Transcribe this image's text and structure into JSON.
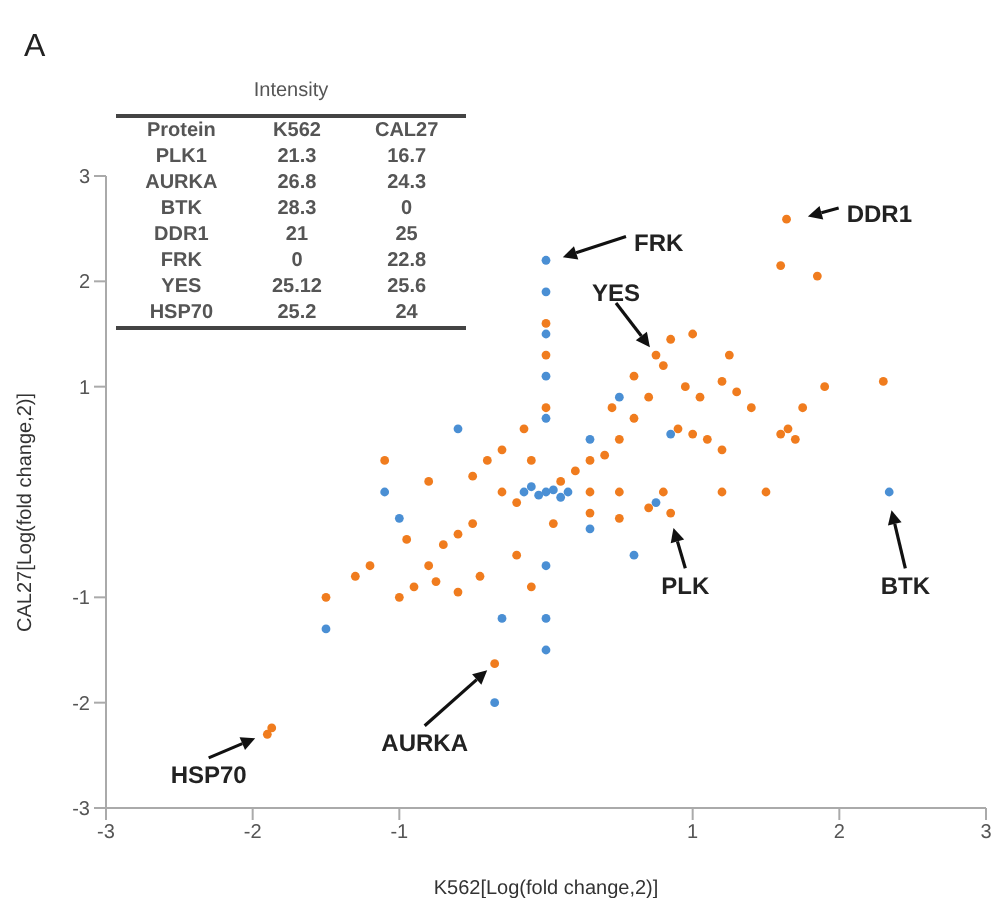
{
  "chart_data": [
    {
      "type": "scatter",
      "xlabel": "K562[Log(fold change,2)]",
      "ylabel": "CAL27[Log(fold change,2)]",
      "xlim": [
        -3,
        3
      ],
      "ylim": [
        -3,
        3
      ],
      "xticks": [
        -3,
        -2,
        -1,
        1,
        2,
        3
      ],
      "yticks": [
        -3,
        -2,
        -1,
        1,
        2,
        3
      ],
      "marker": "circle",
      "annotations": [
        "A",
        "FRK",
        "DDR1",
        {
          "text": "YES",
          "x": 0.75,
          "y": 1.3
        },
        "PLK",
        "BTK",
        {
          "text": "AURKA",
          "x": -0.35,
          "y": -1.63
        },
        "HSP70"
      ],
      "series": [
        {
          "color": "#f07c1e",
          "x": [
            -0.3,
            -0.2,
            0.1,
            0.2,
            0.3,
            0.4,
            0.5,
            0.6,
            0.7,
            0.75,
            0.8,
            0.9,
            1.0,
            1.1,
            1.2,
            0.95,
            1.05,
            1.2,
            1.3,
            1.25,
            1.4,
            1.6,
            1.7,
            1.75,
            1.65,
            1.9,
            2.3,
            1.6,
            1.85,
            1.64,
            -0.5,
            -0.6,
            -0.7,
            -0.8,
            -0.9,
            -1.0,
            -0.75,
            -0.6,
            -0.45,
            -0.2,
            -0.1,
            -0.35,
            -1.87,
            -1.9,
            -0.4,
            -0.5,
            -0.3,
            -0.15,
            0,
            0,
            0,
            0.3,
            0.5,
            0.7,
            0.85,
            0.3,
            0.5,
            0.8,
            1.2,
            1.5,
            -0.1,
            0.05,
            -0.8,
            -1.1,
            -1.2,
            -1.5,
            -1.3,
            -0.95,
            0.45,
            0.6,
            0.85,
            1.0
          ],
          "values": [
            0,
            -0.1,
            0.1,
            0.2,
            0.3,
            0.35,
            0.5,
            0.7,
            0.9,
            1.3,
            1.2,
            0.6,
            0.55,
            0.5,
            0.4,
            1.0,
            0.9,
            1.05,
            0.95,
            1.3,
            0.8,
            0.55,
            0.5,
            0.8,
            0.6,
            1.0,
            1.05,
            2.15,
            2.05,
            2.59,
            -0.3,
            -0.4,
            -0.5,
            -0.7,
            -0.9,
            -1.0,
            -0.85,
            -0.95,
            -0.8,
            -0.6,
            -0.9,
            -1.63,
            -2.24,
            -2.3,
            0.3,
            0.15,
            0.4,
            0.6,
            0.8,
            1.3,
            1.6,
            -0.2,
            -0.25,
            -0.15,
            -0.2,
            0,
            0,
            0,
            0,
            0,
            0.3,
            -0.3,
            0.1,
            0.3,
            -0.7,
            -1.0,
            -0.8,
            -0.45,
            0.8,
            1.1,
            1.45,
            1.5
          ]
        },
        {
          "color": "#4a8fd4",
          "x": [
            0,
            0.05,
            -0.05,
            0.1,
            -0.1,
            0.15,
            -0.15,
            0,
            0,
            0,
            0,
            0,
            0,
            0,
            0,
            0.3,
            0.5,
            -0.6,
            -1.1,
            -1.0,
            0.3,
            0.6,
            -0.35,
            2.34,
            0.75,
            -0.3,
            0.85,
            -1.5
          ],
          "values": [
            0,
            0.02,
            -0.03,
            -0.05,
            0.05,
            0,
            0,
            2.2,
            1.9,
            1.5,
            1.1,
            0.7,
            -0.7,
            -1.2,
            -1.5,
            0.5,
            0.9,
            0.6,
            0,
            -0.25,
            -0.35,
            -0.6,
            -2.0,
            0,
            -0.1,
            -1.2,
            0.55,
            -1.3
          ]
        }
      ]
    },
    {
      "type": "other",
      "title": "Intensity",
      "xlabel": "Protein",
      "categories": [
        "PLK1",
        "AURKA",
        "BTK",
        "DDR1",
        "FRK",
        "YES",
        "HSP70"
      ],
      "data_labels": true,
      "series": [
        {
          "name": "K562",
          "values": [
            21.3,
            26.8,
            28.3,
            21,
            0,
            25.12,
            25.2
          ]
        },
        {
          "name": "CAL27",
          "values": [
            16.7,
            24.3,
            0,
            25,
            22.8,
            25.6,
            24
          ]
        }
      ]
    }
  ]
}
